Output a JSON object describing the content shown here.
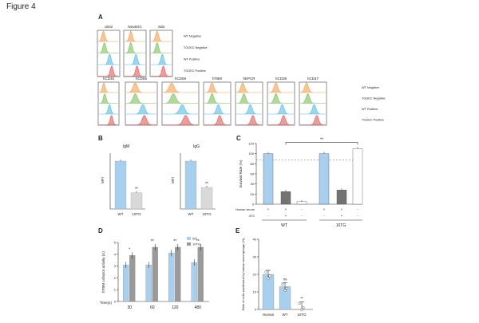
{
  "page": {
    "figure_title": "Figure 4"
  },
  "panels": {
    "A": {
      "letter": "A",
      "legend": [
        "WT Negative",
        "TGGEC Negative",
        "WT Positive",
        "TGGEC Positive"
      ],
      "colors": [
        "#f0a050",
        "#7cc05a",
        "#55bde6",
        "#e15a5a"
      ],
      "top_row": [
        "αGal",
        "Neu5GC",
        "Sda"
      ],
      "bottom_row": [
        "hCD46",
        "hCD55",
        "hCD59",
        "hTBM",
        "hEPCR",
        "hCD39",
        "hCD47"
      ]
    },
    "B": {
      "letter": "B",
      "charts": [
        {
          "title": "IgM",
          "ylabel": "MFI",
          "categories": [
            "WT",
            "10TG"
          ],
          "values": [
            1,
            0.34
          ],
          "sig": [
            "",
            "**"
          ],
          "colors": [
            "#a9cfee",
            "#d9d9d9"
          ]
        },
        {
          "title": "IgG",
          "ylabel": "MFI",
          "categories": [
            "WT",
            "10TG"
          ],
          "values": [
            1,
            0.45
          ],
          "sig": [
            "",
            "**"
          ],
          "colors": [
            "#a9cfee",
            "#d9d9d9"
          ]
        }
      ]
    },
    "C": {
      "letter": "C",
      "ylabel": "Survival Rate (%)",
      "yticks": [
        "0",
        "20",
        "40",
        "60",
        "80",
        "100",
        "120"
      ],
      "ylim": [
        0,
        120
      ],
      "dashed_line": 88,
      "values": [
        100,
        25,
        5,
        100,
        28,
        110
      ],
      "colors": [
        "#a9cfee",
        "#737373",
        "#ffffff",
        "#a9cfee",
        "#737373",
        "#ffffff"
      ],
      "row_labels": [
        "Human serum",
        "4TG"
      ],
      "row_signs": [
        [
          "+",
          "+",
          "-",
          "+",
          "+",
          "-"
        ],
        [
          "-",
          "+",
          "-",
          "-",
          "+",
          "-"
        ]
      ],
      "group_labels": [
        "WT",
        "10TG"
      ],
      "sig": "**"
    },
    "D": {
      "letter": "D",
      "ylabel": "hTBM cofactor activity (U)",
      "xlabel": "Time(s)",
      "categories": [
        "30",
        "60",
        "120",
        "480"
      ],
      "yticks": [
        "0",
        "1",
        "2",
        "3",
        "4",
        "5"
      ],
      "ylim": [
        0,
        5
      ],
      "legend": [
        "WT",
        "10TG"
      ],
      "series": [
        {
          "name": "WT",
          "values": [
            3.1,
            3.1,
            4.1,
            3.3
          ],
          "color": "#a9cfee"
        },
        {
          "name": "10TG",
          "values": [
            3.9,
            4.6,
            4.6,
            4.6
          ],
          "color": "#9a9a9a"
        }
      ],
      "sig": [
        "*",
        "**",
        "**",
        "**"
      ]
    },
    "E": {
      "letter": "E",
      "ylabel": "Rate of cells swallowed by human macrophage (%)",
      "yticks": [
        "0",
        "10",
        "20",
        "30",
        "40"
      ],
      "ylim": [
        0,
        40
      ],
      "categories": [
        "Human",
        "WT",
        "10TG"
      ],
      "values": [
        20,
        13,
        2
      ],
      "colors": [
        "#a9cfee",
        "#a9cfee",
        "#a9cfee"
      ],
      "sig": [
        "",
        "ns",
        "**"
      ]
    }
  }
}
